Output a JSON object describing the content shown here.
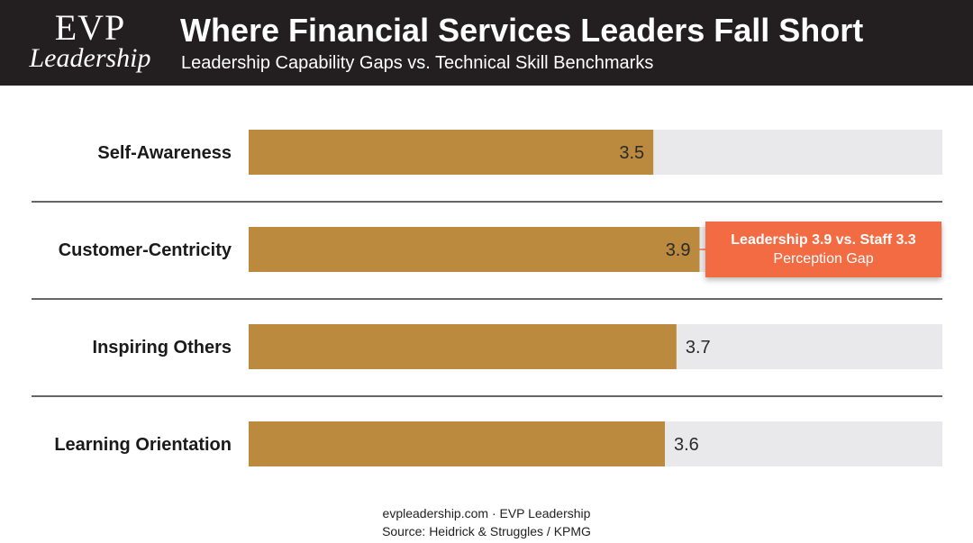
{
  "brand": {
    "logo_top": "EVP",
    "logo_bottom": "Leadership"
  },
  "header": {
    "title": "Where Financial Services Leaders Fall Short",
    "subtitle": "Leadership Capability Gaps vs. Technical Skill Benchmarks"
  },
  "colors": {
    "header_bg": "#231f20",
    "bar_fill": "#bb8a3e",
    "track_fill": "#e9e9ec",
    "callout_bg": "#f26b43",
    "divider": "#333333"
  },
  "chart_data": {
    "type": "bar",
    "orientation": "horizontal",
    "categories": [
      "Self-Awareness",
      "Customer-Centricity",
      "Inspiring Others",
      "Learning Orientation"
    ],
    "values": [
      3.5,
      3.9,
      3.7,
      3.6
    ],
    "value_labels": [
      "3.5",
      "3.9",
      "3.7",
      "3.6"
    ],
    "xlim": [
      0,
      6
    ],
    "grid": false,
    "legend": "none",
    "annotation": {
      "category": "Customer-Centricity",
      "line1": "Leadership 3.9 vs. Staff 3.3",
      "line2": "Perception Gap"
    }
  },
  "footer": {
    "site": "evpleadership.com · EVP Leadership",
    "source": "Source: Heidrick & Struggles / KPMG"
  }
}
